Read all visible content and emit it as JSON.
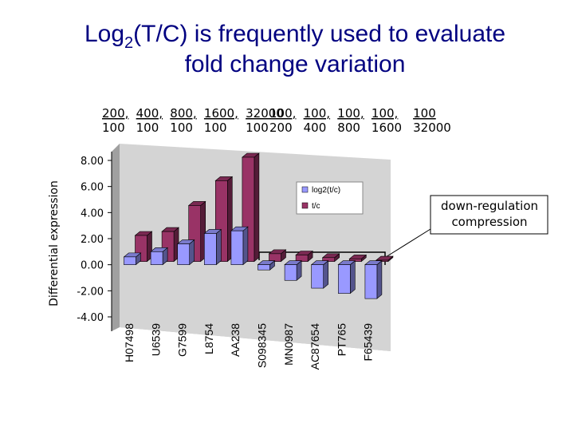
{
  "chart_data": {
    "type": "bar3d",
    "title": {
      "prefix": "Log",
      "subscript": "2",
      "line1": "(T/C) is frequently used to evaluate",
      "line2": "fold change variation"
    },
    "fractions_up": [
      {
        "num": "200",
        "den": "100"
      },
      {
        "num": "400",
        "den": "100"
      },
      {
        "num": "800",
        "den": "100"
      },
      {
        "num": "1600",
        "den": "100"
      },
      {
        "num": "32000",
        "den": "100"
      }
    ],
    "fractions_down": [
      {
        "num": "100",
        "den": "200"
      },
      {
        "num": "100",
        "den": "400"
      },
      {
        "num": "100",
        "den": "800"
      },
      {
        "num": "100",
        "den": "1600"
      },
      {
        "num": "100",
        "den": "32000"
      }
    ],
    "ylabel": "Differential expression",
    "annotation": "down-regulation compression",
    "categories": [
      "H07498",
      "U6539",
      "G7599",
      "L8754",
      "AA238",
      "S098345",
      "MN0987",
      "AC87654",
      "PT765",
      "F65439"
    ],
    "series": [
      {
        "name": "log2(t/c)",
        "color": "#9999ff",
        "values": [
          0.6,
          1,
          1.6,
          2.4,
          2.6,
          -0.4,
          -1.2,
          -1.8,
          -2.2,
          -2.6
        ]
      },
      {
        "name": "t/c",
        "color": "#993366",
        "values": [
          2,
          2.3,
          4.3,
          6.2,
          8,
          0.6,
          0.5,
          0.3,
          0.2,
          0.1
        ]
      }
    ],
    "ylim": [
      -4,
      8
    ],
    "yticks": [
      {
        "value": -4,
        "label": "-4.00"
      },
      {
        "value": -2,
        "label": "-2.00"
      },
      {
        "value": 0,
        "label": "0.00"
      },
      {
        "value": 2,
        "label": "2.00"
      },
      {
        "value": 4,
        "label": "4.00"
      },
      {
        "value": 6,
        "label": "6.00"
      },
      {
        "value": 8,
        "label": "8.00"
      }
    ],
    "legend": "upper-right"
  }
}
